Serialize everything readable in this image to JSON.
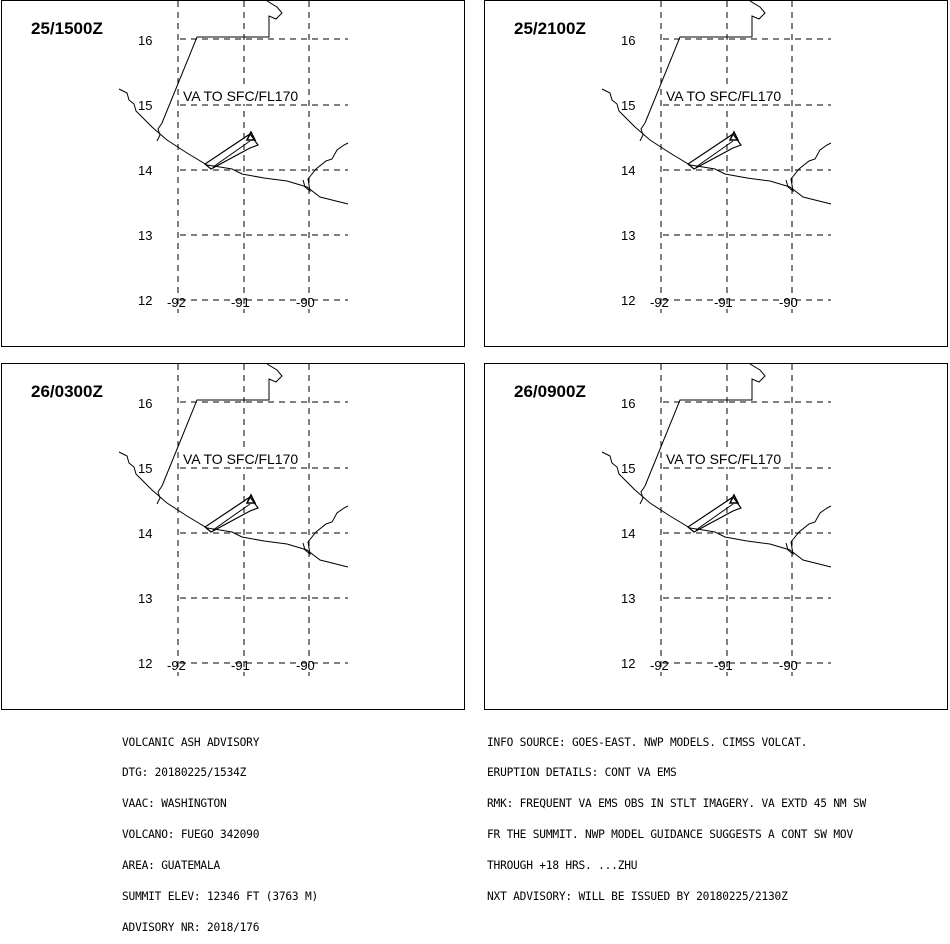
{
  "panels": [
    {
      "time": "25/1500Z",
      "label": "VA TO SFC/FL170"
    },
    {
      "time": "25/2100Z",
      "label": "VA TO SFC/FL170"
    },
    {
      "time": "26/0300Z",
      "label": "VA TO SFC/FL170"
    },
    {
      "time": "26/0900Z",
      "label": "VA TO SFC/FL170"
    }
  ],
  "grid": {
    "lat_labels": [
      "16",
      "15",
      "14",
      "13",
      "12"
    ],
    "lon_labels": [
      "-92",
      "-91",
      "-90"
    ]
  },
  "advisory_left": [
    "VOLCANIC ASH ADVISORY",
    "DTG: 20180225/1534Z",
    "VAAC: WASHINGTON",
    "VOLCANO: FUEGO 342090",
    "AREA: GUATEMALA",
    "SUMMIT ELEV: 12346 FT (3763 M)",
    "ADVISORY NR: 2018/176"
  ],
  "advisory_right": [
    "INFO SOURCE: GOES-EAST. NWP MODELS. CIMSS VOLCAT.",
    "ERUPTION DETAILS: CONT VA EMS",
    "RMK: FREQUENT VA EMS OBS IN STLT IMAGERY. VA EXTD 45 NM SW",
    "FR THE SUMMIT. NWP MODEL GUIDANCE SUGGESTS A CONT SW MOV",
    "THROUGH +18 HRS. ...ZHU",
    "NXT ADVISORY: WILL BE ISSUED BY 20180225/2130Z"
  ],
  "colors": {
    "ink": "#000000",
    "background": "#ffffff"
  },
  "icons": {
    "volcano": "volcano-triangle-icon",
    "plume": "ash-plume-polygon"
  }
}
